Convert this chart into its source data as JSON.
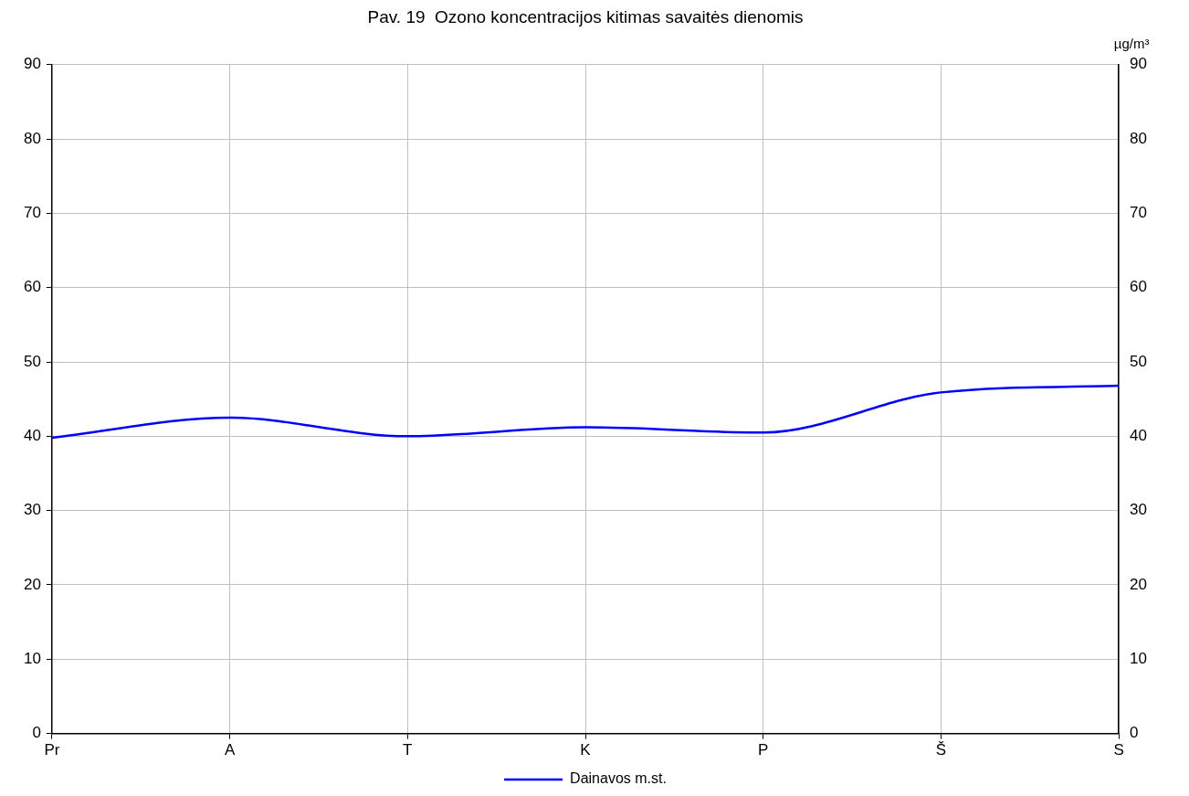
{
  "chart_data": {
    "type": "line",
    "title": "Pav. 19  Ozono koncentracijos kitimas savaitės dienomis",
    "y2label": "µg/m³",
    "categories": [
      "Pr",
      "A",
      "T",
      "K",
      "P",
      "Š",
      "S"
    ],
    "series": [
      {
        "name": "Dainavos m.st.",
        "color": "#0000ff",
        "values": [
          39.8,
          42.5,
          40.0,
          41.2,
          40.5,
          45.9,
          46.8
        ]
      }
    ],
    "ylim": [
      0,
      90
    ],
    "yticks": [
      0,
      10,
      20,
      30,
      40,
      50,
      60,
      70,
      80,
      90
    ],
    "y2lim": [
      0,
      90
    ],
    "y2ticks": [
      0,
      10,
      20,
      30,
      40,
      50,
      60,
      70,
      80,
      90
    ],
    "grid": true,
    "legend": "bottom",
    "marker": "none",
    "line_style": "solid"
  }
}
